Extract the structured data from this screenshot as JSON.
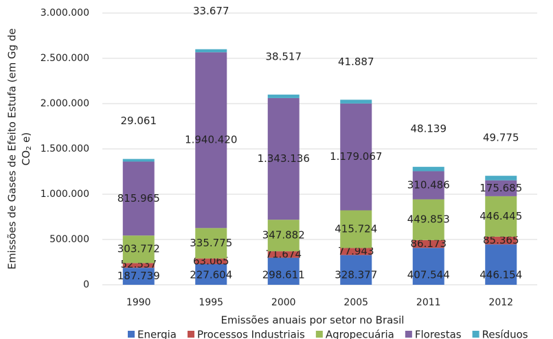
{
  "chart_data": {
    "type": "stacked_bar",
    "ylabel_parts": [
      "Emissões de Gases de Efeito Estufa (em Gg de",
      "CO",
      "2",
      " e)"
    ],
    "xlabel": "Emissões anuais por setor no Brasil",
    "categories": [
      "1990",
      "1995",
      "2000",
      "2005",
      "2011",
      "2012"
    ],
    "series": [
      {
        "name": "Energia",
        "color": "#4472c4",
        "values": [
          187739,
          227604,
          298611,
          328377,
          407544,
          446154
        ],
        "value_labels": [
          "187.739",
          "227.604",
          "298.611",
          "328.377",
          "407.544",
          "446.154"
        ]
      },
      {
        "name": "Processos Industriais",
        "color": "#c0504d",
        "values": [
          52537,
          63065,
          71674,
          77943,
          86173,
          85365
        ],
        "value_labels": [
          "52.537",
          "63.065",
          "71.674",
          "77.943",
          "86.173",
          "85.365"
        ]
      },
      {
        "name": "Agropecuária",
        "color": "#9bbb59",
        "values": [
          303772,
          335775,
          347882,
          415724,
          449853,
          446445
        ],
        "value_labels": [
          "303.772",
          "335.775",
          "347.882",
          "415.724",
          "449.853",
          "446.445"
        ]
      },
      {
        "name": "Florestas",
        "color": "#8064a2",
        "values": [
          815965,
          1940420,
          1343136,
          1179067,
          310486,
          175685
        ],
        "value_labels": [
          "815.965",
          "1.940.420",
          "1.343.136",
          "1.179.067",
          "310.486",
          "175.685"
        ]
      },
      {
        "name": "Resíduos",
        "color": "#4bacc6",
        "values": [
          29061,
          33677,
          38517,
          41887,
          48139,
          49775
        ],
        "value_labels": [
          "29.061",
          "33.677",
          "38.517",
          "41.887",
          "48.139",
          "49.775"
        ]
      }
    ],
    "ylim": [
      0,
      3000000
    ],
    "yticks": [
      0,
      {
        "value": 500000,
        "label": "500.000"
      },
      {
        "value": 1000000,
        "label": "1.000.000"
      },
      {
        "value": 1500000,
        "label": "1.500.000"
      },
      {
        "value": 2000000,
        "label": "2.000.000"
      },
      {
        "value": 2500000,
        "label": "2.500.000"
      },
      {
        "value": 3000000,
        "label": "3.000.000"
      }
    ],
    "grid": true,
    "legend": "bottom"
  }
}
